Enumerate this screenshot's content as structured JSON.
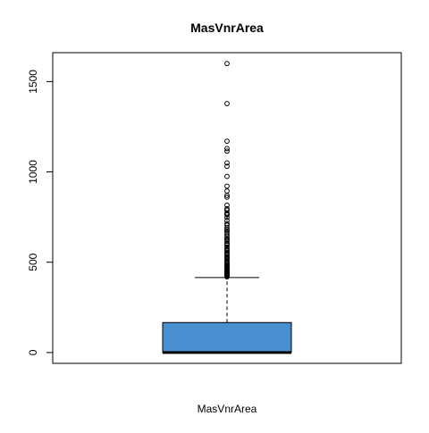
{
  "chart_data": {
    "type": "boxplot",
    "title": "MasVnrArea",
    "xlabel": "MasVnrArea",
    "ylabel": "",
    "ylim": [
      -60,
      1660
    ],
    "yticks": [
      0,
      500,
      1000,
      1500
    ],
    "ytick_labels": [
      "0",
      "500",
      "1000",
      "1500"
    ],
    "box": {
      "min": 0,
      "q1": 0,
      "median": 0,
      "q3": 166,
      "whisker_low": 0,
      "whisker_high": 415
    },
    "outliers": [
      1600,
      1378,
      1170,
      1129,
      1115,
      1050,
      1031,
      975,
      921,
      894,
      870,
      860,
      816,
      796,
      788,
      772,
      766,
      762,
      748,
      731,
      714,
      705,
      690,
      680,
      672,
      664,
      651,
      640,
      632,
      624,
      616,
      604,
      600,
      594,
      584,
      573,
      567,
      562,
      554,
      548,
      541,
      532,
      528,
      522,
      515,
      506,
      500,
      495,
      491,
      484,
      480,
      475,
      472,
      468,
      464,
      460,
      456,
      452,
      448,
      445,
      442,
      438,
      435,
      432,
      428,
      425,
      421,
      419
    ],
    "colors": {
      "box_fill": "#4a90d0",
      "box_border": "#000000",
      "axis": "#000000"
    },
    "grid": false,
    "legend": "none"
  }
}
